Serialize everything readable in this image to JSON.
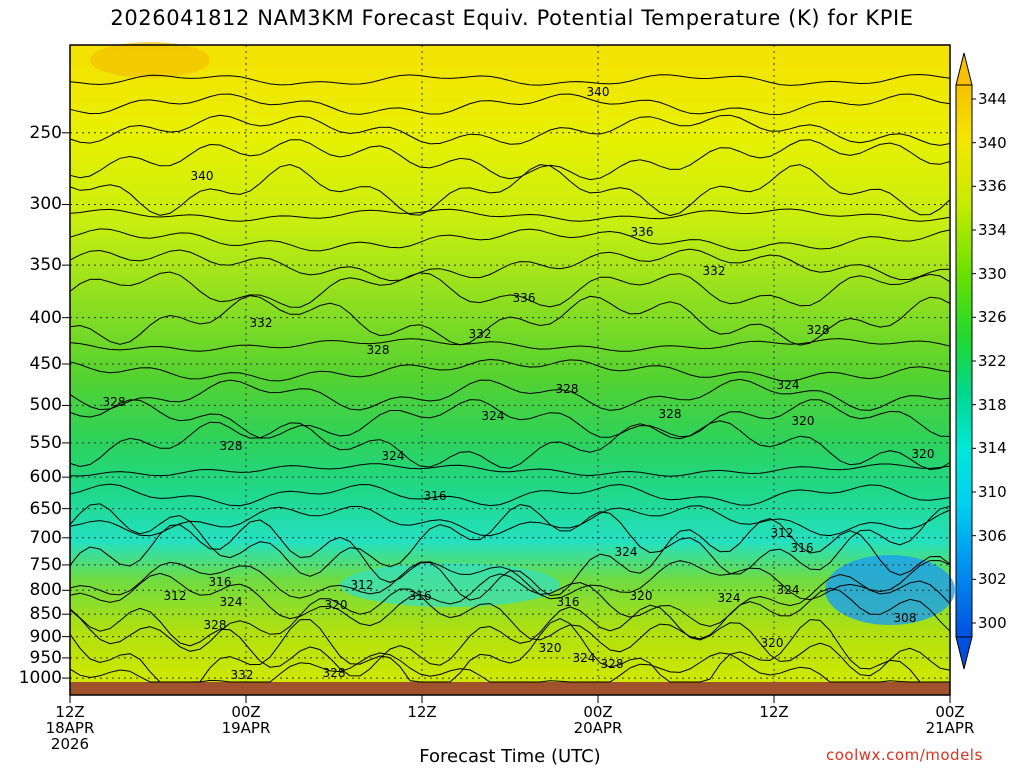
{
  "title": "2026041812 NAM3KM Forecast Equiv. Potential Temperature (K) for KPIE",
  "xlabel": "Forecast Time (UTC)",
  "credit": "coolwx.com/models",
  "colors": {
    "ground": "#a0522d",
    "contour": "#000000",
    "credit": "#e0301e"
  },
  "chart_data": {
    "type": "heatmap",
    "title": "2026041812 NAM3KM Forecast Equiv. Potential Temperature (K) for KPIE",
    "xlabel": "Forecast Time (UTC)",
    "ylabel": "",
    "y_scale": "log",
    "y_reversed": true,
    "y_ticks": [
      250,
      300,
      350,
      400,
      450,
      500,
      550,
      600,
      650,
      700,
      750,
      800,
      850,
      900,
      950,
      1000
    ],
    "x_ticks": [
      {
        "line1": "12Z",
        "line2": "18APR",
        "line3": "2026"
      },
      {
        "line1": "00Z",
        "line2": "19APR",
        "line3": ""
      },
      {
        "line1": "12Z",
        "line2": "",
        "line3": ""
      },
      {
        "line1": "00Z",
        "line2": "20APR",
        "line3": ""
      },
      {
        "line1": "12Z",
        "line2": "",
        "line3": ""
      },
      {
        "line1": "00Z",
        "line2": "21APR",
        "line3": ""
      }
    ],
    "x_range": [
      "2026-04-18 12Z",
      "2026-04-21 00Z"
    ],
    "colorbar": {
      "labels": [
        344,
        340,
        336,
        334,
        330,
        326,
        322,
        318,
        314,
        310,
        306,
        302,
        300
      ],
      "range": [
        300,
        344
      ]
    },
    "contour_labels": [
      "340",
      "340",
      "336",
      "336",
      "332",
      "332",
      "332",
      "328",
      "328",
      "328",
      "328",
      "328",
      "328",
      "324",
      "324",
      "324",
      "324",
      "324",
      "324",
      "320",
      "320",
      "320",
      "320",
      "316",
      "316",
      "316",
      "316",
      "312",
      "312",
      "312",
      "308",
      "328",
      "332",
      "328",
      "320",
      "324",
      "328",
      "320",
      "316",
      "324"
    ],
    "grid": true,
    "legend": "right colorbar"
  }
}
